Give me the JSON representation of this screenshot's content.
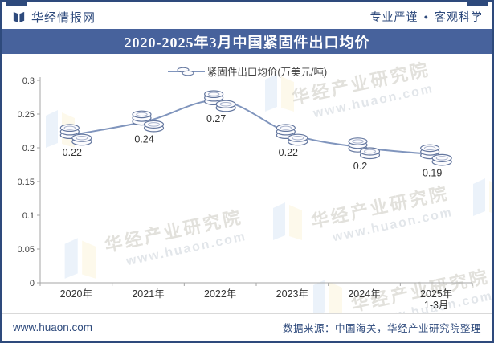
{
  "header": {
    "brand": "华经情报网",
    "slogan": {
      "part1": "专业严谨",
      "separator": "●",
      "part2": "客观科学"
    }
  },
  "title_bar": {
    "title": "2020-2025年3月中国紧固件出口均价"
  },
  "legend": {
    "label": "紧固件出口均价(万美元/吨)"
  },
  "chart_data": {
    "type": "line",
    "title": "2020-2025年3月中国紧固件出口均价",
    "categories": [
      [
        "2020年"
      ],
      [
        "2021年"
      ],
      [
        "2022年"
      ],
      [
        "2023年"
      ],
      [
        "2024年"
      ],
      [
        "2025年",
        "1-3月"
      ]
    ],
    "series": [
      {
        "name": "紧固件出口均价(万美元/吨)",
        "values": [
          0.22,
          0.24,
          0.27,
          0.22,
          0.2,
          0.19
        ],
        "point_labels": [
          "0.22",
          "0.24",
          "0.27",
          "0.22",
          "0.2",
          "0.19"
        ]
      }
    ],
    "unit": "万美元/吨",
    "xlabel": "",
    "ylabel": "",
    "ylim": [
      0,
      0.3
    ],
    "ytick_step": 0.05,
    "yticks": [
      "0",
      "0.05",
      "0.1",
      "0.15",
      "0.2",
      "0.25",
      "0.3"
    ],
    "grid": false,
    "legend_position": "top",
    "line_color": "#8095bd",
    "marker": "coin-stack"
  },
  "watermark": {
    "line1": "华经产业研究院",
    "line2": "www.huaon.com"
  },
  "footer": {
    "website": "www.huaon.com",
    "source": "数据来源：中国海关，华经产业研究院整理"
  },
  "colors": {
    "navy": "#2e4a7c",
    "title_bar_bg": "#47629c",
    "line": "#8095bd",
    "axis": "#a6a6a6",
    "tick_label": "#3f3f3f",
    "coin_stroke": "#64779f"
  }
}
